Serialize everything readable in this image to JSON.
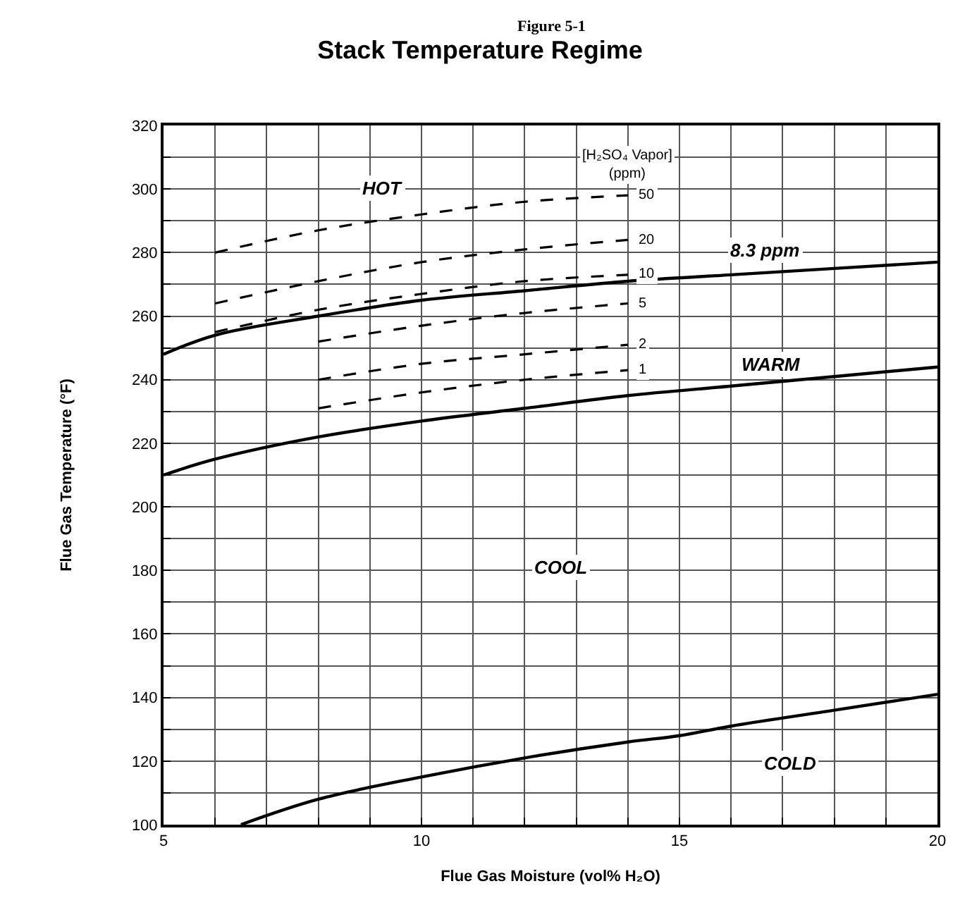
{
  "chart_data": {
    "type": "line",
    "title": "Stack Temperature Regime",
    "subtitle": "Figure 5-1",
    "xlabel": "Flue Gas Moisture (vol% H₂O)",
    "ylabel": "Flue Gas Temperature (°F)",
    "legend_title": "[H₂SO₄ Vapor]\n(ppm)",
    "xlim": [
      5,
      20
    ],
    "ylim": [
      100,
      320
    ],
    "xticks": [
      5,
      {
        "value": 6,
        "label": null
      },
      {
        "value": 7,
        "label": null
      },
      {
        "value": 8,
        "label": null
      },
      {
        "value": 9,
        "label": null
      },
      10,
      {
        "value": 11,
        "label": null
      },
      {
        "value": 12,
        "label": null
      },
      {
        "value": 13,
        "label": null
      },
      {
        "value": 14,
        "label": null
      },
      15,
      {
        "value": 16,
        "label": null
      },
      {
        "value": 17,
        "label": null
      },
      {
        "value": 18,
        "label": null
      },
      {
        "value": 19,
        "label": null
      },
      20
    ],
    "yticks": [
      100,
      {
        "value": 110,
        "label": null
      },
      120,
      {
        "value": 130,
        "label": null
      },
      140,
      {
        "value": 150,
        "label": null
      },
      160,
      {
        "value": 170,
        "label": null
      },
      180,
      {
        "value": 190,
        "label": null
      },
      200,
      {
        "value": 210,
        "label": null
      },
      220,
      {
        "value": 230,
        "label": null
      },
      240,
      {
        "value": 250,
        "label": null
      },
      260,
      {
        "value": 270,
        "label": null
      },
      280,
      {
        "value": 290,
        "label": null
      },
      300,
      {
        "value": 310,
        "label": null
      },
      320
    ],
    "grid": true,
    "legend": false,
    "marker": "none",
    "series": [
      {
        "name": "50",
        "color": "#000000",
        "line_style": "dashed",
        "x": [
          6,
          8,
          10,
          12,
          14
        ],
        "values": [
          280,
          287,
          292,
          296,
          298
        ]
      },
      {
        "name": "20",
        "color": "#000000",
        "line_style": "dashed",
        "x": [
          6,
          8,
          10,
          12,
          14
        ],
        "values": [
          264,
          271,
          277,
          281,
          284
        ]
      },
      {
        "name": "10",
        "color": "#000000",
        "line_style": "dashed",
        "x": [
          6,
          8,
          10,
          12,
          14
        ],
        "values": [
          255,
          262,
          267,
          271,
          273
        ]
      },
      {
        "name": "5",
        "color": "#000000",
        "line_style": "dashed",
        "x": [
          8,
          10,
          12,
          14
        ],
        "values": [
          252,
          257,
          261,
          264
        ]
      },
      {
        "name": "2",
        "color": "#000000",
        "line_style": "dashed",
        "x": [
          8,
          10,
          12,
          14
        ],
        "values": [
          240,
          245,
          248,
          251
        ]
      },
      {
        "name": "1",
        "color": "#000000",
        "line_style": "dashed",
        "x": [
          8,
          10,
          12,
          14
        ],
        "values": [
          231,
          236,
          240,
          243
        ]
      },
      {
        "color": "#000000",
        "line_style": "solid",
        "x": [
          5,
          6,
          8,
          10,
          12,
          14,
          16,
          18,
          20
        ],
        "values": [
          248,
          254,
          260,
          265,
          268,
          271,
          273,
          275,
          277
        ]
      },
      {
        "color": "#000000",
        "line_style": "solid",
        "x": [
          5,
          6,
          8,
          10,
          12,
          14,
          16,
          18,
          20
        ],
        "values": [
          210,
          215,
          222,
          227,
          231,
          235,
          238,
          241,
          244
        ]
      },
      {
        "color": "#000000",
        "line_style": "solid",
        "x": [
          6.5,
          8,
          10,
          12,
          14,
          15,
          16,
          18,
          20
        ],
        "values": [
          100,
          108,
          115,
          121,
          126,
          128,
          131,
          136,
          141
        ]
      }
    ],
    "annotations": [
      "HOT",
      "WARM",
      "COOL",
      "COLD",
      "8.3 ppm"
    ]
  }
}
